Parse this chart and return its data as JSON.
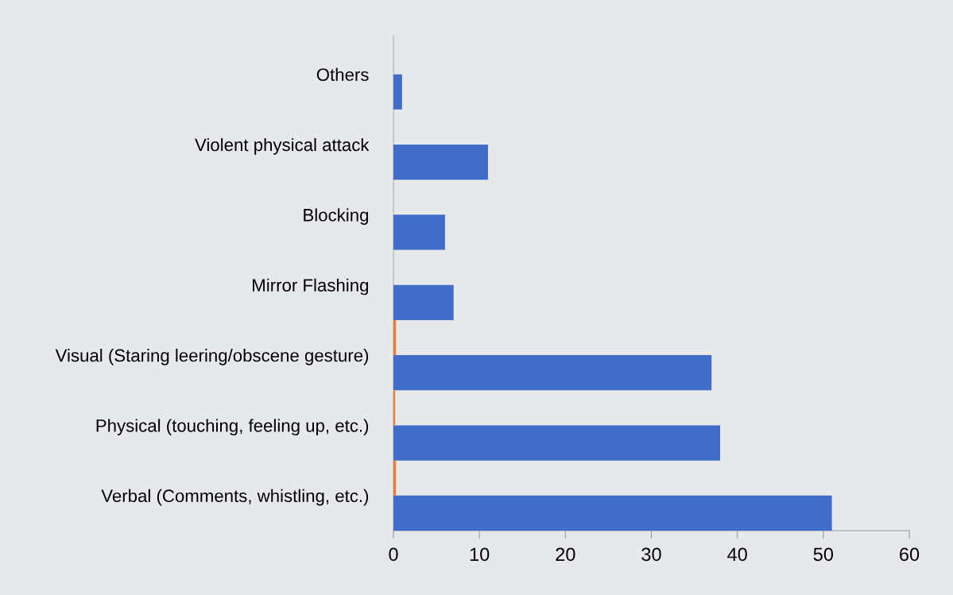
{
  "chart_data": {
    "type": "bar",
    "orientation": "horizontal",
    "categories": [
      "Others",
      "Violent physical attack",
      "Blocking",
      "Mirror Flashing",
      "Visual (Staring leering/obscene gesture)",
      "Physical (touching, feeling up, etc.)",
      "Verbal (Comments, whistling, etc.)"
    ],
    "series": [
      {
        "color": "#3f6dc9",
        "values": [
          1,
          11,
          6,
          7,
          37,
          38,
          51
        ]
      },
      {
        "color": "#ed7d31",
        "values": [
          null,
          null,
          null,
          null,
          0.3,
          0.2,
          0.3
        ]
      }
    ],
    "xlim": [
      0,
      60
    ],
    "xticks": [
      0,
      10,
      20,
      30,
      40,
      50,
      60
    ],
    "grid": false,
    "legend": false
  }
}
